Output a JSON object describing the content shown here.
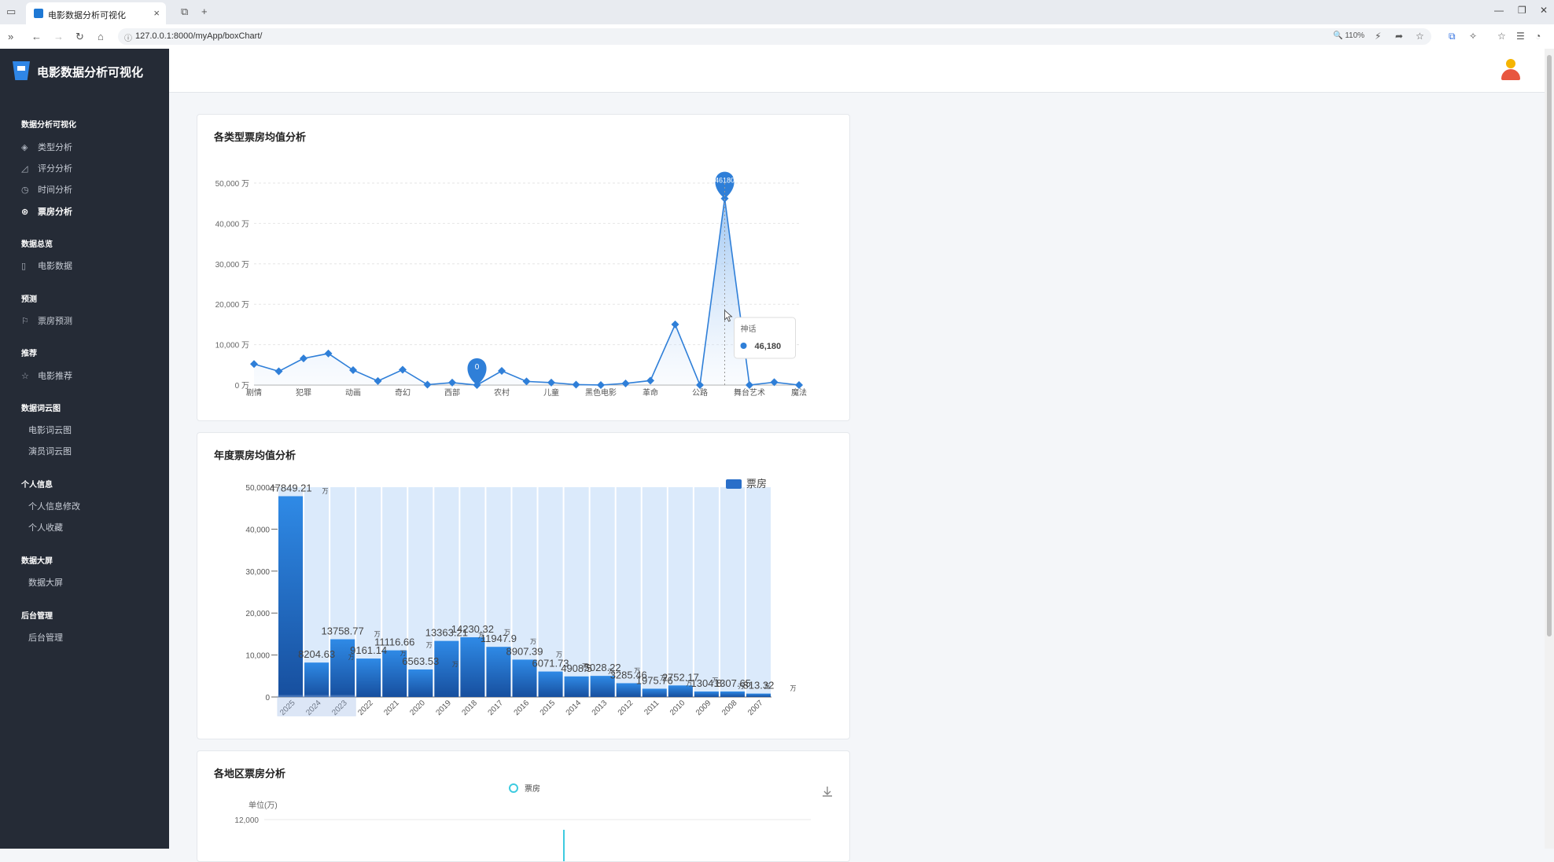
{
  "browser": {
    "tab_title": "电影数据分析可视化",
    "url": "127.0.0.1:8000/myApp/boxChart/",
    "zoom": "110%"
  },
  "sidebar": {
    "app_name": "电影数据分析可视化",
    "sections": [
      {
        "title": "数据分析可视化",
        "items": [
          {
            "label": "类型分析",
            "icon": "layers-icon"
          },
          {
            "label": "评分分析",
            "icon": "rating-icon"
          },
          {
            "label": "时间分析",
            "icon": "clock-icon"
          },
          {
            "label": "票房分析",
            "icon": "boxoffice-icon",
            "active": true
          }
        ]
      },
      {
        "title": "数据总览",
        "items": [
          {
            "label": "电影数据",
            "icon": "book-icon"
          }
        ]
      },
      {
        "title": "预测",
        "items": [
          {
            "label": "票房预测",
            "icon": "flag-icon"
          }
        ]
      },
      {
        "title": "推荐",
        "items": [
          {
            "label": "电影推荐",
            "icon": "star-icon"
          }
        ]
      },
      {
        "title": "数据词云图",
        "items": [
          {
            "label": "电影词云图"
          },
          {
            "label": "演员词云图"
          }
        ]
      },
      {
        "title": "个人信息",
        "items": [
          {
            "label": "个人信息修改"
          },
          {
            "label": "个人收藏"
          }
        ]
      },
      {
        "title": "数据大屏",
        "items": [
          {
            "label": "数据大屏"
          }
        ]
      },
      {
        "title": "后台管理",
        "items": [
          {
            "label": "后台管理"
          }
        ]
      }
    ]
  },
  "cards": {
    "genre": {
      "title": "各类型票房均值分析"
    },
    "year": {
      "title": "年度票房均值分析"
    },
    "region": {
      "title": "各地区票房分析",
      "legend": "票房",
      "unit": "单位(万)",
      "y_tick": "12,000"
    }
  },
  "chart_data": [
    {
      "type": "line",
      "title": "各类型票房均值分析",
      "ylim": [
        0,
        50000
      ],
      "y_ticks": [
        "0 万",
        "10,000 万",
        "20,000 万",
        "30,000 万",
        "40,000 万",
        "50,000 万"
      ],
      "x_tick_labels": [
        "剧情",
        "犯罪",
        "动画",
        "奇幻",
        "西部",
        "农村",
        "儿童",
        "黑色电影",
        "革命",
        "公路",
        "舞台艺术",
        "魔法"
      ],
      "values": [
        5200,
        3400,
        6600,
        7800,
        3700,
        1000,
        3800,
        100,
        600,
        0,
        3500,
        900,
        600,
        100,
        0,
        400,
        1100,
        15000,
        0,
        46180,
        0,
        700,
        0
      ],
      "max_pin": "46180",
      "min_pin": "0",
      "tooltip": {
        "name": "神话",
        "value": "46,180"
      },
      "area": true,
      "grid": true
    },
    {
      "type": "bar",
      "title": "年度票房均值分析",
      "legend": "票房",
      "ylim": [
        0,
        50000
      ],
      "y_ticks": [
        "0",
        "10,000",
        "20,000",
        "30,000",
        "40,000",
        "50,000"
      ],
      "categories": [
        "2025",
        "2024",
        "2023",
        "2022",
        "2021",
        "2020",
        "2019",
        "2018",
        "2017",
        "2016",
        "2015",
        "2014",
        "2013",
        "2012",
        "2011",
        "2010",
        "2009",
        "2008",
        "2007"
      ],
      "values": [
        47849.21,
        8204.63,
        13758.77,
        9161.14,
        11116.66,
        6563.53,
        13363.21,
        14230.32,
        11947.9,
        8907.39,
        6071.73,
        4908.5,
        5028.22,
        3285.46,
        1975.76,
        2752.17,
        1304.8,
        1307.65,
        813.32
      ],
      "labels": [
        "47849.21",
        "8204.63",
        "13758.77",
        "9161.14",
        "11116.66",
        "6563.53",
        "13363.21",
        "14230.32",
        "11947.9",
        "8907.39",
        "6071.73",
        "4908.5",
        "5028.22",
        "3285.46",
        "1975.76",
        "2752.17",
        "1304.8",
        "1307.65",
        "813.32"
      ],
      "label_unit": "万",
      "background_bars": true
    }
  ]
}
